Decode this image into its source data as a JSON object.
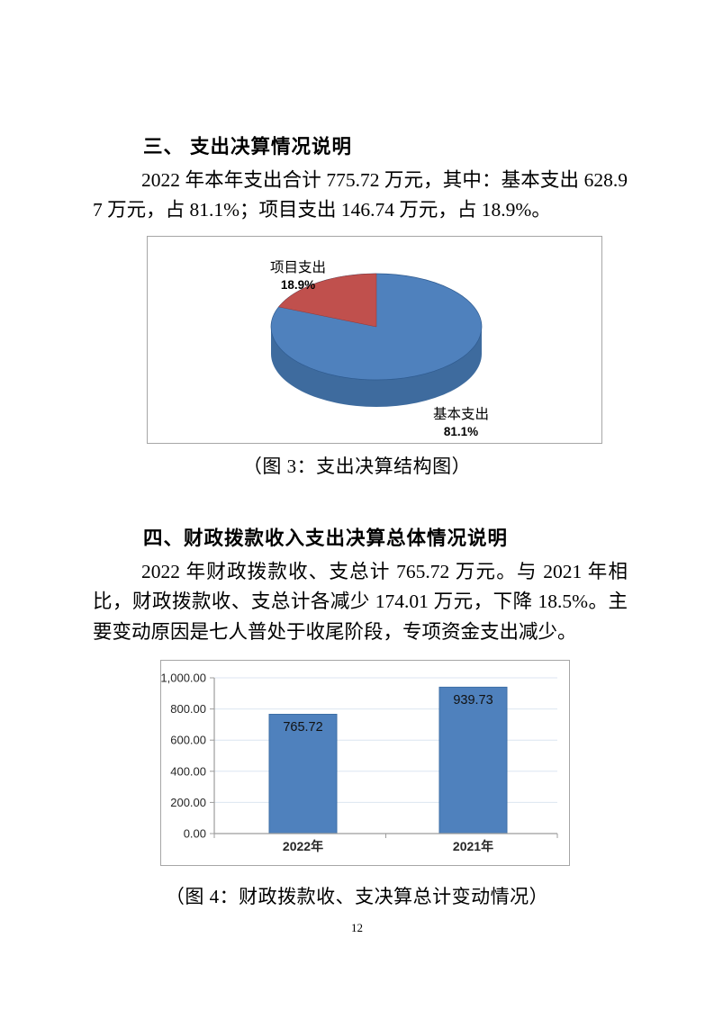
{
  "document": {
    "page_number": "12",
    "section3": {
      "heading": "三、 支出决算情况说明",
      "paragraph": "2022 年本年支出合计 775.72 万元，其中：基本支出 628.97 万元，占 81.1%；项目支出 146.74 万元，占 18.9%。",
      "figure_caption": "（图 3：支出决算结构图）"
    },
    "section4": {
      "heading": "四、财政拨款收入支出决算总体情况说明",
      "paragraph": "2022 年财政拨款收、支总计 765.72 万元。与 2021 年相比，财政拨款收、支总计各减少 174.01 万元，下降 18.5%。主要变动原因是七人普处于收尾阶段，专项资金支出减少。",
      "figure_caption": "（图 4：财政拨款收、支决算总计变动情况）"
    }
  },
  "chart_data": [
    {
      "type": "pie",
      "style": "3d",
      "title": "支出决算结构图",
      "slices": [
        {
          "label": "基本支出",
          "pct_label": "81.1%",
          "value": 81.1,
          "color": "#4F81BD",
          "side_color": "#3E6B9E"
        },
        {
          "label": "项目支出",
          "pct_label": "18.9%",
          "value": 18.9,
          "color": "#C0504D"
        }
      ],
      "legend": "none"
    },
    {
      "type": "bar",
      "title": "财政拨款收、支决算总计变动情况",
      "categories": [
        "2022年",
        "2021年"
      ],
      "values": [
        765.72,
        939.73
      ],
      "data_labels": [
        "765.72",
        "939.73"
      ],
      "ylim": [
        0,
        1000
      ],
      "ytick_labels": [
        "1,000.00",
        "800.00",
        "600.00",
        "400.00",
        "200.00",
        "0.00"
      ],
      "bar_color": "#4F81BD",
      "bar_border_color": "#3C6EA5",
      "gridline_color": "#DCE6F1",
      "axis_color": "#9C9C9C",
      "grid": "on",
      "legend": "none"
    }
  ]
}
